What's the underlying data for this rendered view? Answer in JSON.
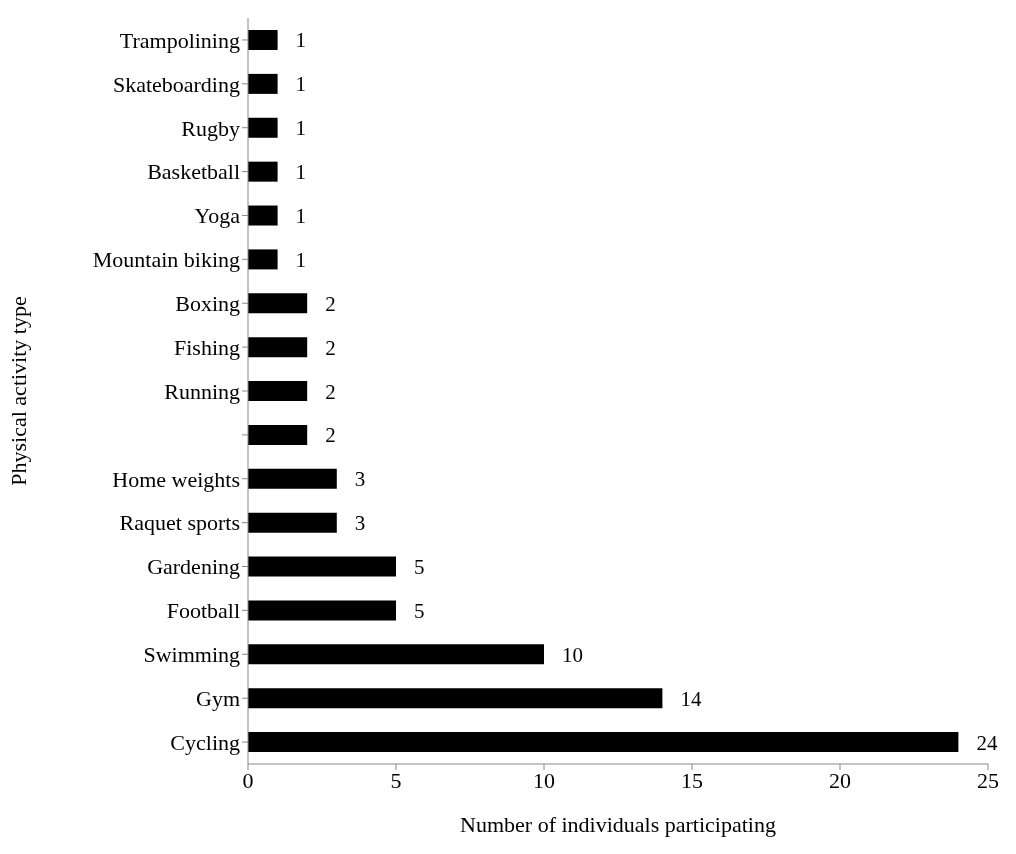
{
  "chart_data": {
    "type": "bar",
    "orientation": "horizontal",
    "xlabel": "Number of individuals participating",
    "ylabel": "Physical activity type",
    "categories": [
      "Trampolining",
      "Skateboarding",
      "Rugby",
      "Basketball",
      "Yoga",
      "Mountain biking",
      "Boxing",
      "Fishing",
      "Running",
      null,
      "Home weights",
      "Raquet sports",
      "Gardening",
      "Football",
      "Swimming",
      "Gym",
      "Cycling"
    ],
    "values": [
      1,
      1,
      1,
      1,
      1,
      1,
      2,
      2,
      2,
      2,
      3,
      3,
      5,
      5,
      10,
      14,
      24
    ],
    "color": "#000000",
    "xlim": [
      0,
      25
    ],
    "xticks": [
      0,
      5,
      10,
      15,
      20,
      25
    ],
    "data_labels": true,
    "grid": false
  }
}
